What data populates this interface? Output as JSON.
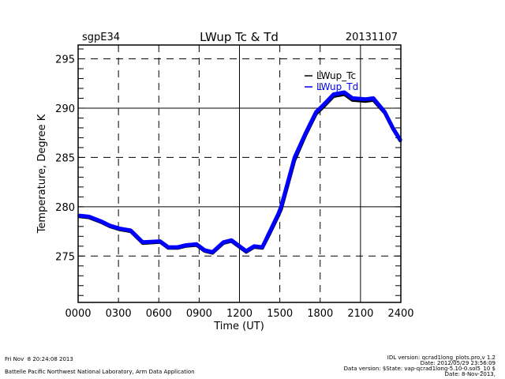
{
  "chart_data": {
    "type": "line",
    "title": "LWup Tc & Td",
    "site": "sgpE34",
    "date": "20131107",
    "xlabel": "Time (UT)",
    "ylabel": "Temperature, Degree K",
    "xlim": [
      0,
      24
    ],
    "ylim": [
      270.3,
      296.4
    ],
    "x_ticks": [
      0,
      3,
      6,
      9,
      12,
      15,
      18,
      21,
      24
    ],
    "x_tick_labels": [
      "0000",
      "0300",
      "0600",
      "0900",
      "1200",
      "1500",
      "1800",
      "2100",
      "2400"
    ],
    "y_ticks": [
      275,
      280,
      285,
      290,
      295
    ],
    "y_tick_labels": [
      "275",
      "280",
      "285",
      "290",
      "295"
    ],
    "grid": {
      "solid_x": [
        12,
        21
      ],
      "dashed_x": [
        3,
        6,
        9,
        15,
        18
      ],
      "solid_y": [
        280,
        290
      ],
      "dashed_y": [
        275,
        285,
        295
      ]
    },
    "legend_position": "top-right",
    "series": [
      {
        "name": "LWup_Tc",
        "color": "#000000",
        "x": [
          0.1,
          0.8,
          1.75,
          2.35,
          3.05,
          3.9,
          4.8,
          6.1,
          6.7,
          7.4,
          8.0,
          8.8,
          9.4,
          10.0,
          10.8,
          11.4,
          12.5,
          13.1,
          13.7,
          14.3,
          14.9,
          15.1,
          16.1,
          16.9,
          17.7,
          18.3,
          19.0,
          19.8,
          20.4,
          21.4,
          21.95,
          22.8,
          23.4,
          23.95
        ],
        "y": [
          279.0,
          278.9,
          278.4,
          278.0,
          277.7,
          277.5,
          276.3,
          276.4,
          275.8,
          275.8,
          276.0,
          276.1,
          275.5,
          275.3,
          276.3,
          276.5,
          275.4,
          275.9,
          275.8,
          277.4,
          279.1,
          279.7,
          284.7,
          287.2,
          289.4,
          290.2,
          291.2,
          291.4,
          290.8,
          290.7,
          290.8,
          289.5,
          287.9,
          286.7
        ]
      },
      {
        "name": "LWup_Td",
        "color": "#0000ff",
        "x": [
          0.1,
          0.8,
          1.75,
          2.35,
          3.05,
          3.9,
          4.8,
          6.1,
          6.7,
          7.4,
          8.0,
          8.8,
          9.4,
          10.0,
          10.8,
          11.4,
          12.5,
          13.1,
          13.7,
          14.3,
          14.9,
          15.1,
          16.1,
          16.9,
          17.7,
          18.3,
          19.0,
          19.8,
          20.4,
          21.4,
          21.95,
          22.8,
          23.4,
          23.95
        ],
        "y": [
          279.1,
          279.0,
          278.5,
          278.1,
          277.8,
          277.6,
          276.4,
          276.5,
          275.9,
          275.9,
          276.1,
          276.2,
          275.6,
          275.4,
          276.4,
          276.6,
          275.5,
          276.0,
          275.9,
          277.6,
          279.3,
          280.0,
          285.0,
          287.4,
          289.6,
          290.4,
          291.4,
          291.6,
          291.0,
          290.9,
          291.0,
          289.6,
          288.0,
          286.8
        ]
      }
    ]
  },
  "legend": {
    "tc": "LWup_Tc",
    "td": "LWup_Td"
  },
  "footer": {
    "timestamp": "Fri Nov  8 20:24:08 2013",
    "org": "Battelle Pacific Northwest National Laboratory, Arm Data Application",
    "idl_version": "IDL version: qcrad1long_plots.pro,v 1.2",
    "idl_date": "Date: 2012/05/29 23:56:09",
    "data_version": "Data version: $State: vap-qcrad1long-5.10-0.sol5_10 $",
    "data_date": "Date: 8-Nov-2013,"
  }
}
